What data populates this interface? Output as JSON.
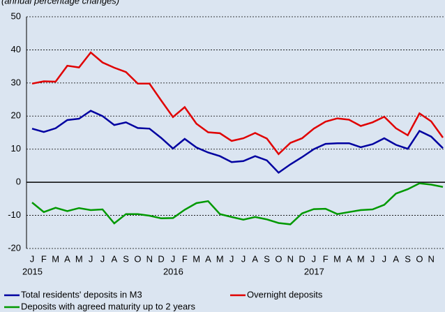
{
  "chart_data": {
    "type": "line",
    "subtitle": "(annual percentage changes)",
    "categories": [
      "J",
      "F",
      "M",
      "A",
      "M",
      "J",
      "J",
      "A",
      "S",
      "O",
      "N",
      "D",
      "J",
      "F",
      "M",
      "A",
      "M",
      "J",
      "J",
      "A",
      "S",
      "O",
      "N",
      "D",
      "J",
      "F",
      "M",
      "A",
      "M",
      "J",
      "J",
      "A",
      "S",
      "O",
      "N",
      null
    ],
    "years": [
      "2015",
      "2016",
      "2017"
    ],
    "series": [
      {
        "name": "Total residents' deposits in M3",
        "color": "#0000a0",
        "values": [
          16.2,
          15.2,
          16.3,
          18.8,
          19.2,
          21.6,
          20.0,
          17.3,
          18.1,
          16.4,
          16.2,
          13.4,
          10.2,
          13.1,
          10.5,
          9.0,
          7.9,
          6.1,
          6.4,
          7.9,
          6.6,
          2.9,
          5.4,
          7.6,
          10.0,
          11.6,
          11.8,
          11.8,
          10.6,
          11.5,
          13.3,
          11.3,
          10.1,
          15.5,
          13.8,
          10.3
        ]
      },
      {
        "name": "Overnight deposits",
        "color": "#e00000",
        "values": [
          29.8,
          30.5,
          30.4,
          35.2,
          34.7,
          39.2,
          36.2,
          34.6,
          33.3,
          29.8,
          29.8,
          24.7,
          19.7,
          22.7,
          17.7,
          15.1,
          14.8,
          12.5,
          13.3,
          14.9,
          13.2,
          8.5,
          11.9,
          13.3,
          16.2,
          18.3,
          19.3,
          18.9,
          17.0,
          18.1,
          19.8,
          16.3,
          14.2,
          20.8,
          18.4,
          13.5
        ]
      },
      {
        "name": "Deposits with agreed maturity up to 2 years",
        "color": "#009900",
        "values": [
          -6.1,
          -9.0,
          -7.7,
          -8.7,
          -7.8,
          -8.4,
          -8.2,
          -12.4,
          -9.6,
          -9.6,
          -10.1,
          -10.9,
          -10.8,
          -8.3,
          -6.3,
          -5.7,
          -9.6,
          -10.5,
          -11.3,
          -10.5,
          -11.2,
          -12.3,
          -12.7,
          -9.4,
          -8.1,
          -8.0,
          -9.6,
          -9.0,
          -8.4,
          -8.2,
          -6.8,
          -3.4,
          -2.1,
          -0.3,
          -0.7,
          -1.4
        ]
      }
    ],
    "ylim": [
      -20,
      50
    ],
    "yticks": [
      -20,
      -10,
      0,
      10,
      20,
      30,
      40,
      50
    ],
    "grid": true
  }
}
